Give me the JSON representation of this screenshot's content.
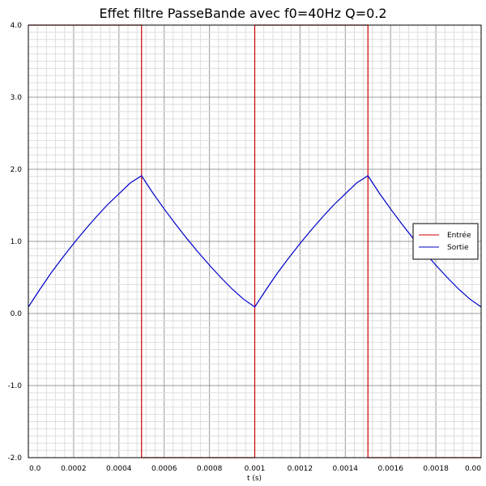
{
  "chart_data": {
    "type": "line",
    "title": "Effet filtre PasseBande avec f0=40Hz Q=0.2",
    "xlabel": "t (s)",
    "ylabel": "",
    "xlim": [
      0,
      0.002
    ],
    "ylim": [
      -2.0,
      4.0
    ],
    "x_ticks": [
      "0.0",
      "0.0002",
      "0.0004",
      "0.0006",
      "0.0008",
      "0.001",
      "0.0012",
      "0.0014",
      "0.0016",
      "0.0018",
      "0.00"
    ],
    "y_ticks": [
      "-2.0",
      "-1.0",
      "0.0",
      "1.0",
      "2.0",
      "3.0",
      "4.0"
    ],
    "grid": true,
    "legend_position": "right",
    "series": [
      {
        "name": "Entrée",
        "color": "#cc0000",
        "x": [
          0,
          0.0005,
          0.0005,
          0.001,
          0.001,
          0.0015,
          0.0015,
          0.002
        ],
        "y": [
          4.0,
          4.0,
          -2.0,
          -2.0,
          4.0,
          4.0,
          -2.0,
          -2.0
        ]
      },
      {
        "name": "Sortie",
        "color": "#0000cc",
        "x": [
          0,
          5e-05,
          0.0001,
          0.00015,
          0.0002,
          0.00025,
          0.0003,
          0.00035,
          0.0004,
          0.00045,
          0.0005,
          0.00055,
          0.0006,
          0.00065,
          0.0007,
          0.00075,
          0.0008,
          0.00085,
          0.0009,
          0.00095,
          0.001,
          0.00105,
          0.0011,
          0.00115,
          0.0012,
          0.00125,
          0.0013,
          0.00135,
          0.0014,
          0.00145,
          0.0015,
          0.00155,
          0.0016,
          0.00165,
          0.0017,
          0.00175,
          0.0018,
          0.00185,
          0.0019,
          0.00195,
          0.002
        ],
        "y": [
          0.09,
          0.33,
          0.56,
          0.77,
          0.97,
          1.16,
          1.34,
          1.51,
          1.66,
          1.81,
          1.91,
          1.67,
          1.45,
          1.24,
          1.04,
          0.85,
          0.67,
          0.5,
          0.34,
          0.2,
          0.09,
          0.33,
          0.56,
          0.77,
          0.97,
          1.16,
          1.34,
          1.51,
          1.66,
          1.81,
          1.91,
          1.67,
          1.45,
          1.24,
          1.04,
          0.85,
          0.67,
          0.5,
          0.34,
          0.2,
          0.09
        ]
      }
    ]
  }
}
